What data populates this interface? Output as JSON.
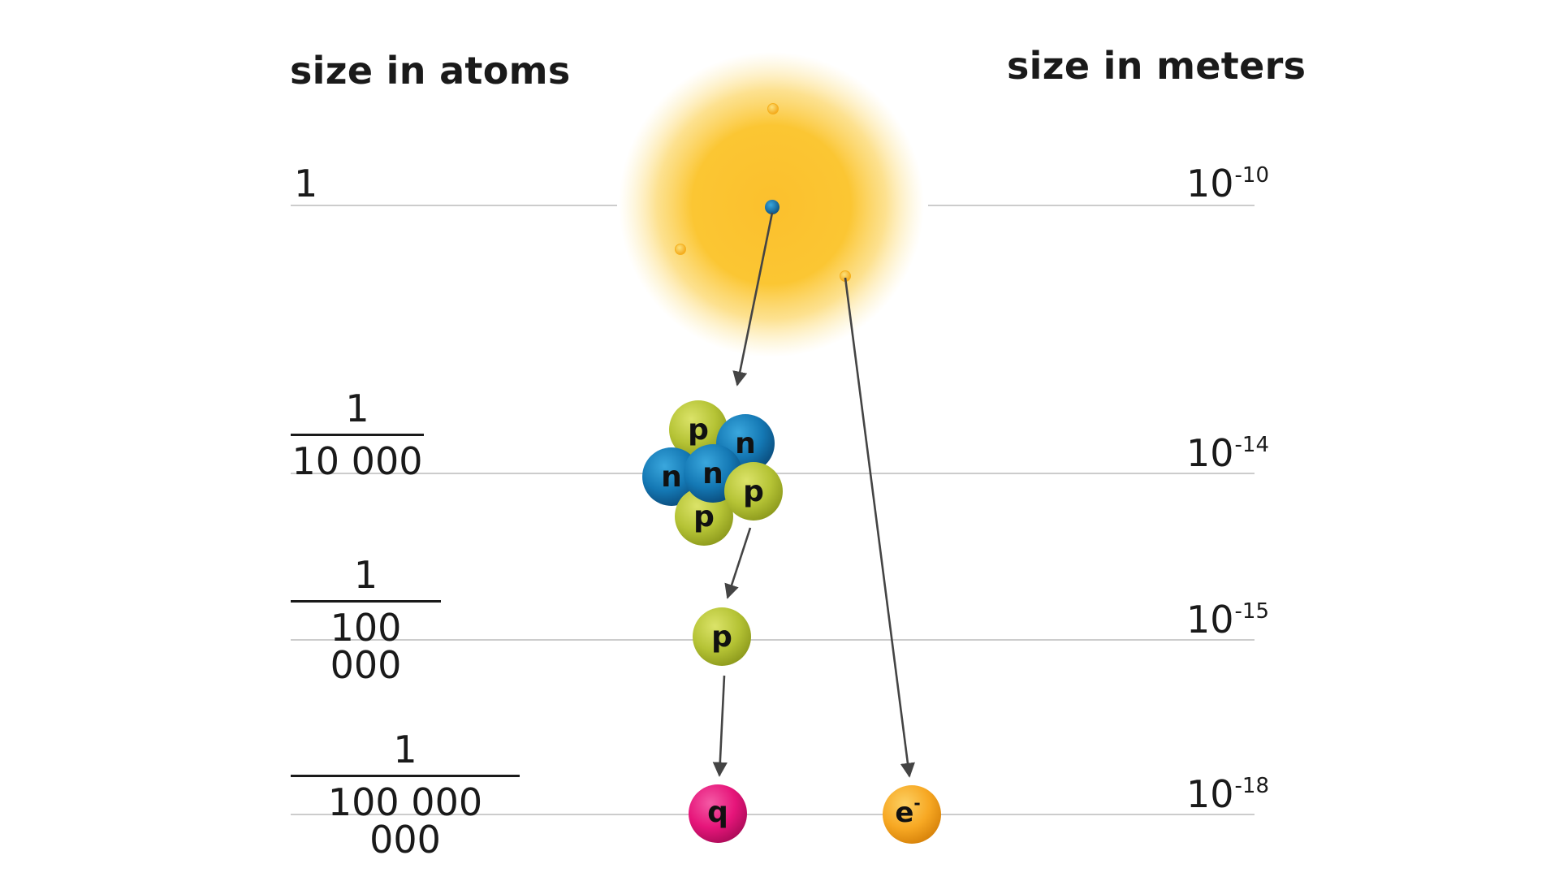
{
  "headers": {
    "left": "size in atoms",
    "right": "size in meters"
  },
  "rows": [
    {
      "key": "atom",
      "atoms_simple": "1",
      "meters_base": "10",
      "meters_exp": "-10"
    },
    {
      "key": "nucleus",
      "atoms_num": "1",
      "atoms_den": "10 000",
      "meters_base": "10",
      "meters_exp": "-14"
    },
    {
      "key": "nucleon",
      "atoms_num": "1",
      "atoms_den": "100 000",
      "meters_base": "10",
      "meters_exp": "-15"
    },
    {
      "key": "quark",
      "atoms_num": "1",
      "atoms_den": "100 000 000",
      "meters_base": "10",
      "meters_exp": "-18"
    }
  ],
  "particles": {
    "proton": "p",
    "neutron": "n",
    "quark": "q",
    "electron": "e",
    "electron_sup": "-"
  },
  "colors": {
    "atom_glow": "#fbc02d",
    "proton": "#b5c335",
    "neutron": "#1478b4",
    "quark": "#e6157a",
    "electron": "#f7a823",
    "guide_line": "#cccccc",
    "arrow": "#444444"
  }
}
